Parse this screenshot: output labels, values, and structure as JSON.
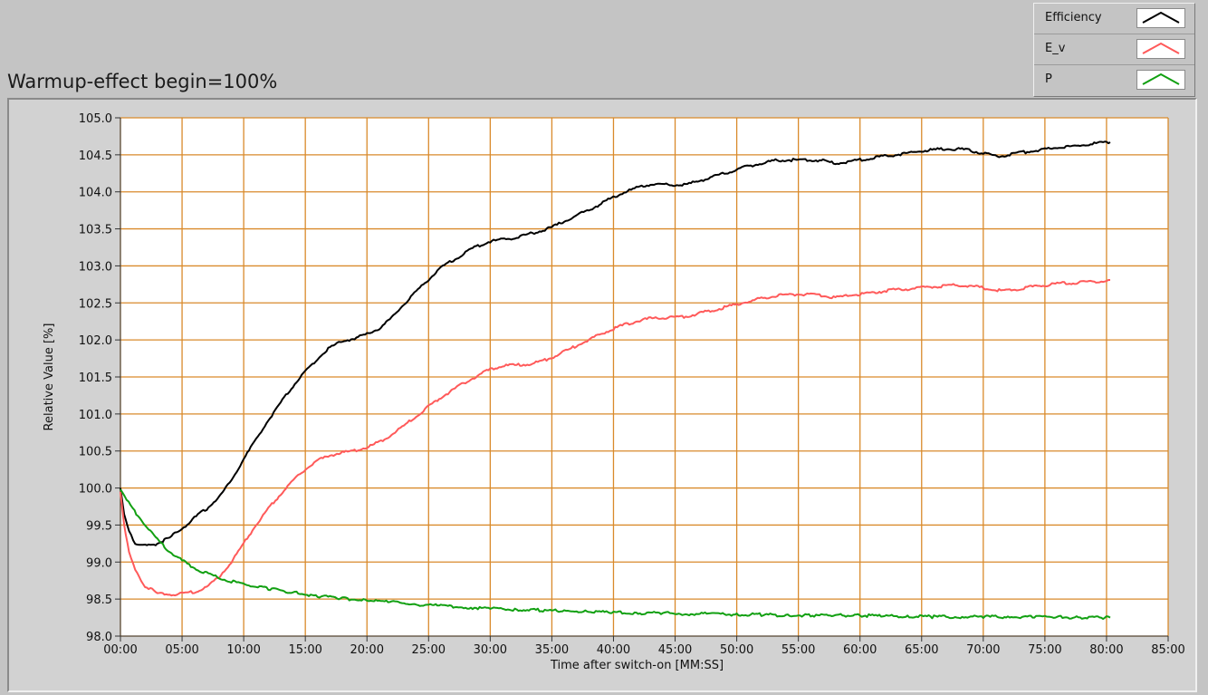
{
  "graph": {
    "title": "Warmup-effect begin=100%"
  },
  "legend": {
    "items": [
      {
        "label": "Efficiency",
        "color": "#000000"
      },
      {
        "label": "E_v",
        "color": "#ff5a5a"
      },
      {
        "label": "P",
        "color": "#12a012"
      }
    ]
  },
  "colors": {
    "plot_background": "#ffffff",
    "grid": "#d98a2b",
    "panel": "#c4c4c4"
  },
  "chart_data": {
    "type": "line",
    "title": "Warmup-effect begin=100%",
    "xlabel": "Time after switch-on [MM:SS]",
    "ylabel": "Relative Value [%]",
    "x_unit": "minutes",
    "xlim": [
      0,
      85
    ],
    "ylim": [
      98,
      105
    ],
    "x_ticks": [
      0,
      5,
      10,
      15,
      20,
      25,
      30,
      35,
      40,
      45,
      50,
      55,
      60,
      65,
      70,
      75,
      80,
      85
    ],
    "x_tick_labels": [
      "00:00",
      "05:00",
      "10:00",
      "15:00",
      "20:00",
      "25:00",
      "30:00",
      "35:00",
      "40:00",
      "45:00",
      "50:00",
      "55:00",
      "60:00",
      "65:00",
      "70:00",
      "75:00",
      "80:00",
      "85:00"
    ],
    "y_ticks": [
      98,
      98.5,
      99,
      99.5,
      100,
      100.5,
      101,
      101.5,
      102,
      102.5,
      103,
      103.5,
      104,
      104.5,
      105
    ],
    "y_tick_labels": [
      "98.0",
      "98.5",
      "99.0",
      "99.5",
      "100.0",
      "100.5",
      "101.0",
      "101.5",
      "102.0",
      "102.5",
      "103.0",
      "103.5",
      "104.0",
      "104.5",
      "105.0"
    ],
    "grid": true,
    "legend_position": "top-right",
    "series": [
      {
        "name": "Efficiency",
        "color": "#000000",
        "x": [
          0,
          0.3,
          0.7,
          1.2,
          2,
          3,
          4,
          5,
          6,
          7,
          8,
          9,
          10,
          11,
          12,
          13,
          14,
          15,
          16,
          17,
          18,
          19,
          20,
          21,
          22,
          23,
          24,
          25,
          26,
          27,
          28,
          29,
          30,
          31,
          32,
          33,
          34,
          35,
          36,
          37,
          38,
          39,
          40,
          41,
          42,
          43,
          44,
          45,
          46,
          47,
          48,
          49,
          50,
          51,
          52,
          53,
          54,
          55,
          56,
          57,
          58,
          59,
          60,
          61,
          62,
          63,
          64,
          65,
          66,
          67,
          68,
          69,
          70,
          71,
          72,
          73,
          74,
          75,
          76,
          77,
          78,
          79,
          80,
          80.3
        ],
        "y": [
          100.0,
          99.65,
          99.4,
          99.25,
          99.22,
          99.25,
          99.33,
          99.45,
          99.6,
          99.72,
          99.88,
          100.1,
          100.4,
          100.65,
          100.92,
          101.15,
          101.38,
          101.58,
          101.75,
          101.9,
          101.98,
          102.02,
          102.08,
          102.15,
          102.3,
          102.48,
          102.65,
          102.82,
          102.98,
          103.08,
          103.18,
          103.27,
          103.33,
          103.36,
          103.38,
          103.42,
          103.47,
          103.52,
          103.6,
          103.68,
          103.76,
          103.84,
          103.93,
          104.0,
          104.06,
          104.1,
          104.1,
          104.09,
          104.1,
          104.15,
          104.2,
          104.25,
          104.3,
          104.35,
          104.38,
          104.42,
          104.43,
          104.43,
          104.43,
          104.42,
          104.38,
          104.4,
          104.43,
          104.46,
          104.48,
          104.5,
          104.53,
          104.55,
          104.57,
          104.58,
          104.58,
          104.56,
          104.52,
          104.48,
          104.5,
          104.53,
          104.55,
          104.57,
          104.6,
          104.61,
          104.63,
          104.65,
          104.67,
          104.67
        ]
      },
      {
        "name": "E_v",
        "color": "#ff5a5a",
        "x": [
          0,
          0.3,
          0.7,
          1.2,
          2,
          3,
          4,
          5,
          6,
          7,
          8,
          9,
          10,
          11,
          12,
          13,
          14,
          15,
          16,
          17,
          18,
          19,
          20,
          21,
          22,
          23,
          24,
          25,
          26,
          27,
          28,
          29,
          30,
          31,
          32,
          33,
          34,
          35,
          36,
          37,
          38,
          39,
          40,
          41,
          42,
          43,
          44,
          45,
          46,
          47,
          48,
          49,
          50,
          51,
          52,
          53,
          54,
          55,
          56,
          57,
          58,
          59,
          60,
          61,
          62,
          63,
          64,
          65,
          66,
          67,
          68,
          69,
          70,
          71,
          72,
          73,
          74,
          75,
          76,
          77,
          78,
          79,
          80,
          80.3
        ],
        "y": [
          99.95,
          99.5,
          99.15,
          98.88,
          98.68,
          98.58,
          98.56,
          98.57,
          98.6,
          98.66,
          98.8,
          99.0,
          99.25,
          99.5,
          99.72,
          99.92,
          100.1,
          100.25,
          100.37,
          100.44,
          100.48,
          100.5,
          100.55,
          100.62,
          100.72,
          100.84,
          100.97,
          101.1,
          101.22,
          101.33,
          101.43,
          101.52,
          101.6,
          101.65,
          101.66,
          101.67,
          101.7,
          101.76,
          101.84,
          101.92,
          102.0,
          102.08,
          102.15,
          102.21,
          102.26,
          102.29,
          102.3,
          102.3,
          102.32,
          102.36,
          102.4,
          102.44,
          102.48,
          102.52,
          102.56,
          102.59,
          102.61,
          102.62,
          102.61,
          102.6,
          102.57,
          102.6,
          102.62,
          102.64,
          102.66,
          102.68,
          102.69,
          102.71,
          102.72,
          102.73,
          102.74,
          102.73,
          102.7,
          102.67,
          102.67,
          102.69,
          102.72,
          102.74,
          102.76,
          102.77,
          102.78,
          102.79,
          102.8,
          102.81
        ]
      },
      {
        "name": "P",
        "color": "#12a012",
        "x": [
          0,
          0.5,
          1,
          2,
          3,
          4,
          5,
          6,
          7,
          8,
          9,
          10,
          12,
          14,
          16,
          18,
          20,
          22,
          24,
          26,
          28,
          30,
          32,
          34,
          36,
          38,
          40,
          42,
          44,
          46,
          48,
          50,
          52,
          54,
          56,
          58,
          60,
          62,
          64,
          66,
          68,
          70,
          72,
          74,
          76,
          78,
          80,
          80.3
        ],
        "y": [
          99.98,
          99.85,
          99.72,
          99.5,
          99.3,
          99.14,
          99.02,
          98.92,
          98.85,
          98.79,
          98.74,
          98.7,
          98.64,
          98.59,
          98.54,
          98.51,
          98.48,
          98.46,
          98.43,
          98.41,
          98.39,
          98.37,
          98.36,
          98.35,
          98.34,
          98.33,
          98.32,
          98.31,
          98.31,
          98.3,
          98.3,
          98.29,
          98.29,
          98.28,
          98.28,
          98.28,
          98.28,
          98.27,
          98.27,
          98.26,
          98.26,
          98.26,
          98.26,
          98.26,
          98.26,
          98.25,
          98.25,
          98.25
        ]
      }
    ]
  }
}
